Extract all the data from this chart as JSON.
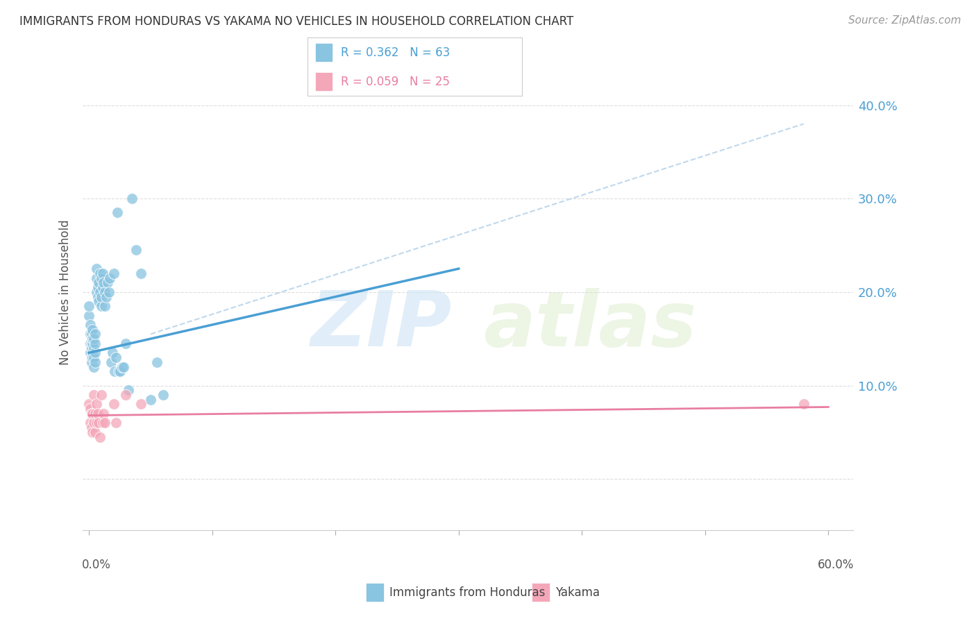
{
  "title": "IMMIGRANTS FROM HONDURAS VS YAKAMA NO VEHICLES IN HOUSEHOLD CORRELATION CHART",
  "source": "Source: ZipAtlas.com",
  "ylabel": "No Vehicles in Household",
  "xlim": [
    -0.005,
    0.62
  ],
  "ylim": [
    -0.055,
    0.455
  ],
  "blue_color": "#89c4e1",
  "pink_color": "#f4a7b9",
  "blue_line_color": "#4a9fd4",
  "pink_line_color": "#e87ea1",
  "dashed_line_color": "#b0cfe8",
  "watermark_zip": "ZIP",
  "watermark_atlas": "atlas",
  "legend_blue_r": "R = 0.362",
  "legend_blue_n": "N = 63",
  "legend_pink_r": "R = 0.059",
  "legend_pink_n": "N = 25",
  "legend_label_blue": "Immigrants from Honduras",
  "legend_label_pink": "Yakama",
  "blue_scatter_x": [
    0.0,
    0.001,
    0.001,
    0.001,
    0.001,
    0.002,
    0.002,
    0.002,
    0.002,
    0.002,
    0.003,
    0.003,
    0.003,
    0.003,
    0.003,
    0.004,
    0.004,
    0.004,
    0.004,
    0.005,
    0.005,
    0.005,
    0.005,
    0.006,
    0.006,
    0.006,
    0.007,
    0.007,
    0.008,
    0.008,
    0.009,
    0.009,
    0.01,
    0.01,
    0.01,
    0.011,
    0.011,
    0.012,
    0.013,
    0.013,
    0.014,
    0.015,
    0.016,
    0.017,
    0.018,
    0.019,
    0.02,
    0.021,
    0.022,
    0.023,
    0.024,
    0.025,
    0.027,
    0.028,
    0.03,
    0.032,
    0.035,
    0.038,
    0.042,
    0.05,
    0.055,
    0.06,
    0.0
  ],
  "blue_scatter_y": [
    0.175,
    0.155,
    0.145,
    0.135,
    0.165,
    0.13,
    0.145,
    0.155,
    0.125,
    0.14,
    0.13,
    0.145,
    0.135,
    0.15,
    0.16,
    0.12,
    0.13,
    0.14,
    0.15,
    0.125,
    0.135,
    0.145,
    0.155,
    0.2,
    0.215,
    0.225,
    0.195,
    0.205,
    0.19,
    0.21,
    0.2,
    0.22,
    0.185,
    0.195,
    0.215,
    0.205,
    0.22,
    0.21,
    0.185,
    0.2,
    0.195,
    0.21,
    0.2,
    0.215,
    0.125,
    0.135,
    0.22,
    0.115,
    0.13,
    0.285,
    0.115,
    0.115,
    0.12,
    0.12,
    0.145,
    0.095,
    0.3,
    0.245,
    0.22,
    0.085,
    0.125,
    0.09,
    0.185
  ],
  "pink_scatter_x": [
    0.0,
    0.001,
    0.001,
    0.002,
    0.002,
    0.003,
    0.003,
    0.004,
    0.004,
    0.005,
    0.005,
    0.006,
    0.006,
    0.007,
    0.008,
    0.009,
    0.01,
    0.011,
    0.012,
    0.013,
    0.02,
    0.022,
    0.03,
    0.042,
    0.58
  ],
  "pink_scatter_y": [
    0.08,
    0.06,
    0.075,
    0.055,
    0.07,
    0.05,
    0.07,
    0.06,
    0.09,
    0.05,
    0.07,
    0.06,
    0.08,
    0.07,
    0.06,
    0.045,
    0.09,
    0.06,
    0.07,
    0.06,
    0.08,
    0.06,
    0.09,
    0.08,
    0.08
  ],
  "blue_line_x": [
    0.0,
    0.3
  ],
  "blue_line_y": [
    0.135,
    0.225
  ],
  "pink_line_x": [
    0.0,
    0.6
  ],
  "pink_line_y": [
    0.068,
    0.077
  ],
  "dashed_line_x": [
    0.05,
    0.58
  ],
  "dashed_line_y": [
    0.155,
    0.38
  ],
  "ytick_values": [
    0.0,
    0.1,
    0.2,
    0.3,
    0.4
  ],
  "xtick_values": [
    0.0,
    0.1,
    0.2,
    0.3,
    0.4,
    0.5,
    0.6
  ],
  "grid_color": "#dddddd",
  "background_color": "#ffffff",
  "title_fontsize": 12,
  "source_fontsize": 11,
  "axis_label_color": "#4a9fd4",
  "tick_color": "#999999"
}
